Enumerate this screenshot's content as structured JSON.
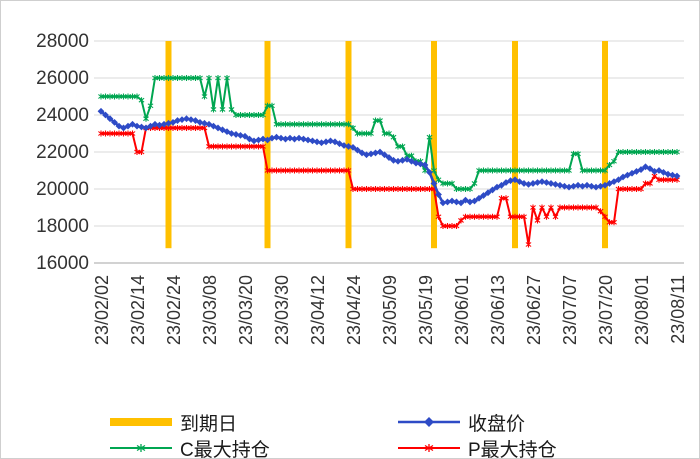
{
  "chart_data": {
    "type": "line",
    "x_labels": [
      "23/02/02",
      "23/02/14",
      "23/02/24",
      "23/03/08",
      "23/03/20",
      "23/03/30",
      "23/04/12",
      "23/04/24",
      "23/05/09",
      "23/05/19",
      "23/06/01",
      "23/06/13",
      "23/06/27",
      "23/07/07",
      "23/07/20",
      "23/08/01",
      "23/08/11"
    ],
    "points_per_label": 8,
    "ylim": [
      16000,
      28000
    ],
    "y_ticks": [
      16000,
      18000,
      20000,
      22000,
      24000,
      26000,
      28000
    ],
    "grid": true,
    "legend_position": "bottom",
    "colors": {
      "grid": "#d9d9d9",
      "axis": "#a6a6a6",
      "tick_text": "#333333"
    },
    "expiry": {
      "name": "到期日",
      "color": "#FFC000",
      "indices": [
        15,
        37,
        55,
        74,
        92,
        112
      ],
      "span": [
        16800,
        28000
      ]
    },
    "series": [
      {
        "name": "收盘价",
        "color": "#2E4BC6",
        "marker": "diamond",
        "values": [
          24200,
          24000,
          23800,
          23600,
          23400,
          23300,
          23400,
          23500,
          23400,
          23350,
          23300,
          23400,
          23500,
          23450,
          23500,
          23550,
          23600,
          23700,
          23750,
          23800,
          23750,
          23700,
          23600,
          23550,
          23500,
          23400,
          23300,
          23200,
          23100,
          23000,
          22950,
          22900,
          22850,
          22700,
          22600,
          22650,
          22700,
          22650,
          22750,
          22800,
          22750,
          22700,
          22750,
          22700,
          22750,
          22700,
          22650,
          22600,
          22550,
          22500,
          22550,
          22600,
          22550,
          22450,
          22350,
          22300,
          22250,
          22100,
          21950,
          21850,
          21900,
          21950,
          22000,
          21850,
          21700,
          21550,
          21500,
          21550,
          21600,
          21500,
          21400,
          21350,
          21300,
          20900,
          20300,
          19700,
          19250,
          19300,
          19350,
          19300,
          19250,
          19400,
          19300,
          19350,
          19500,
          19650,
          19800,
          19950,
          20100,
          20200,
          20350,
          20450,
          20500,
          20400,
          20300,
          20250,
          20300,
          20350,
          20400,
          20350,
          20300,
          20250,
          20200,
          20150,
          20100,
          20150,
          20200,
          20150,
          20200,
          20150,
          20100,
          20150,
          20200,
          20300,
          20400,
          20500,
          20650,
          20750,
          20850,
          20950,
          21050,
          21200,
          21100,
          20950,
          21000,
          20900,
          20800,
          20750,
          20700
        ]
      },
      {
        "name": "C最大持仓",
        "color": "#00A651",
        "marker": "asterisk",
        "values": [
          25000,
          25000,
          25000,
          25000,
          25000,
          25000,
          25000,
          25000,
          25000,
          24800,
          23800,
          24500,
          26000,
          26000,
          26000,
          26000,
          26000,
          26000,
          26000,
          26000,
          26000,
          26000,
          26000,
          25000,
          26000,
          24300,
          26000,
          24300,
          26000,
          24300,
          24000,
          24000,
          24000,
          24000,
          24000,
          24000,
          24000,
          24500,
          24500,
          23500,
          23500,
          23500,
          23500,
          23500,
          23500,
          23500,
          23500,
          23500,
          23500,
          23500,
          23500,
          23500,
          23500,
          23500,
          23500,
          23500,
          23300,
          23000,
          23000,
          23000,
          23000,
          23700,
          23700,
          23000,
          23000,
          22800,
          22300,
          22300,
          21800,
          21800,
          21500,
          21500,
          21000,
          22800,
          21000,
          20500,
          20300,
          20300,
          20300,
          20000,
          20000,
          20000,
          20000,
          20300,
          21000,
          21000,
          21000,
          21000,
          21000,
          21000,
          21000,
          21000,
          21000,
          21000,
          21000,
          21000,
          21000,
          21000,
          21000,
          21000,
          21000,
          21000,
          21000,
          21000,
          21000,
          21900,
          21900,
          21000,
          21000,
          21000,
          21000,
          21000,
          21000,
          21300,
          21500,
          22000,
          22000,
          22000,
          22000,
          22000,
          22000,
          22000,
          22000,
          22000,
          22000,
          22000,
          22000,
          22000,
          22000
        ]
      },
      {
        "name": "P最大持仓",
        "color": "#FF0000",
        "marker": "asterisk",
        "values": [
          23000,
          23000,
          23000,
          23000,
          23000,
          23000,
          23000,
          23000,
          22000,
          22000,
          23300,
          23300,
          23300,
          23300,
          23300,
          23300,
          23300,
          23300,
          23300,
          23300,
          23300,
          23300,
          23300,
          23300,
          22300,
          22300,
          22300,
          22300,
          22300,
          22300,
          22300,
          22300,
          22300,
          22300,
          22300,
          22300,
          22300,
          21000,
          21000,
          21000,
          21000,
          21000,
          21000,
          21000,
          21000,
          21000,
          21000,
          21000,
          21000,
          21000,
          21000,
          21000,
          21000,
          21000,
          21000,
          21000,
          20000,
          20000,
          20000,
          20000,
          20000,
          20000,
          20000,
          20000,
          20000,
          20000,
          20000,
          20000,
          20000,
          20000,
          20000,
          20000,
          20000,
          20000,
          20000,
          18500,
          18000,
          18000,
          18000,
          18000,
          18300,
          18500,
          18500,
          18500,
          18500,
          18500,
          18500,
          18500,
          18500,
          19500,
          19500,
          18500,
          18500,
          18500,
          18500,
          17000,
          19000,
          18300,
          19000,
          18500,
          19000,
          18500,
          19000,
          19000,
          19000,
          19000,
          19000,
          19000,
          19000,
          19000,
          19000,
          18800,
          18500,
          18200,
          18200,
          20000,
          20000,
          20000,
          20000,
          20000,
          20000,
          20300,
          20300,
          20700,
          20500,
          20500,
          20500,
          20500,
          20500
        ]
      }
    ]
  }
}
